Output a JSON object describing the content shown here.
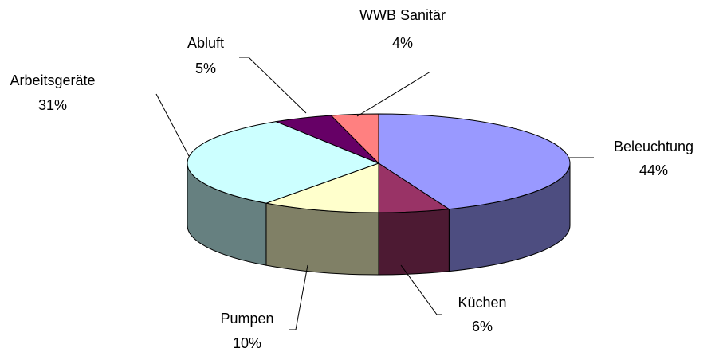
{
  "chart_data": {
    "type": "pie",
    "categories": [
      "Beleuchtung",
      "Küchen",
      "Pumpen",
      "Arbeitsgeräte",
      "Abluft",
      "WWB Sanitär"
    ],
    "values": [
      44,
      6,
      10,
      31,
      5,
      4
    ],
    "value_labels": [
      "44%",
      "6%",
      "10%",
      "31%",
      "5%",
      "4%"
    ],
    "colors": [
      "#9999ff",
      "#993366",
      "#ffffcc",
      "#ccffff",
      "#660066",
      "#ff8080"
    ]
  }
}
